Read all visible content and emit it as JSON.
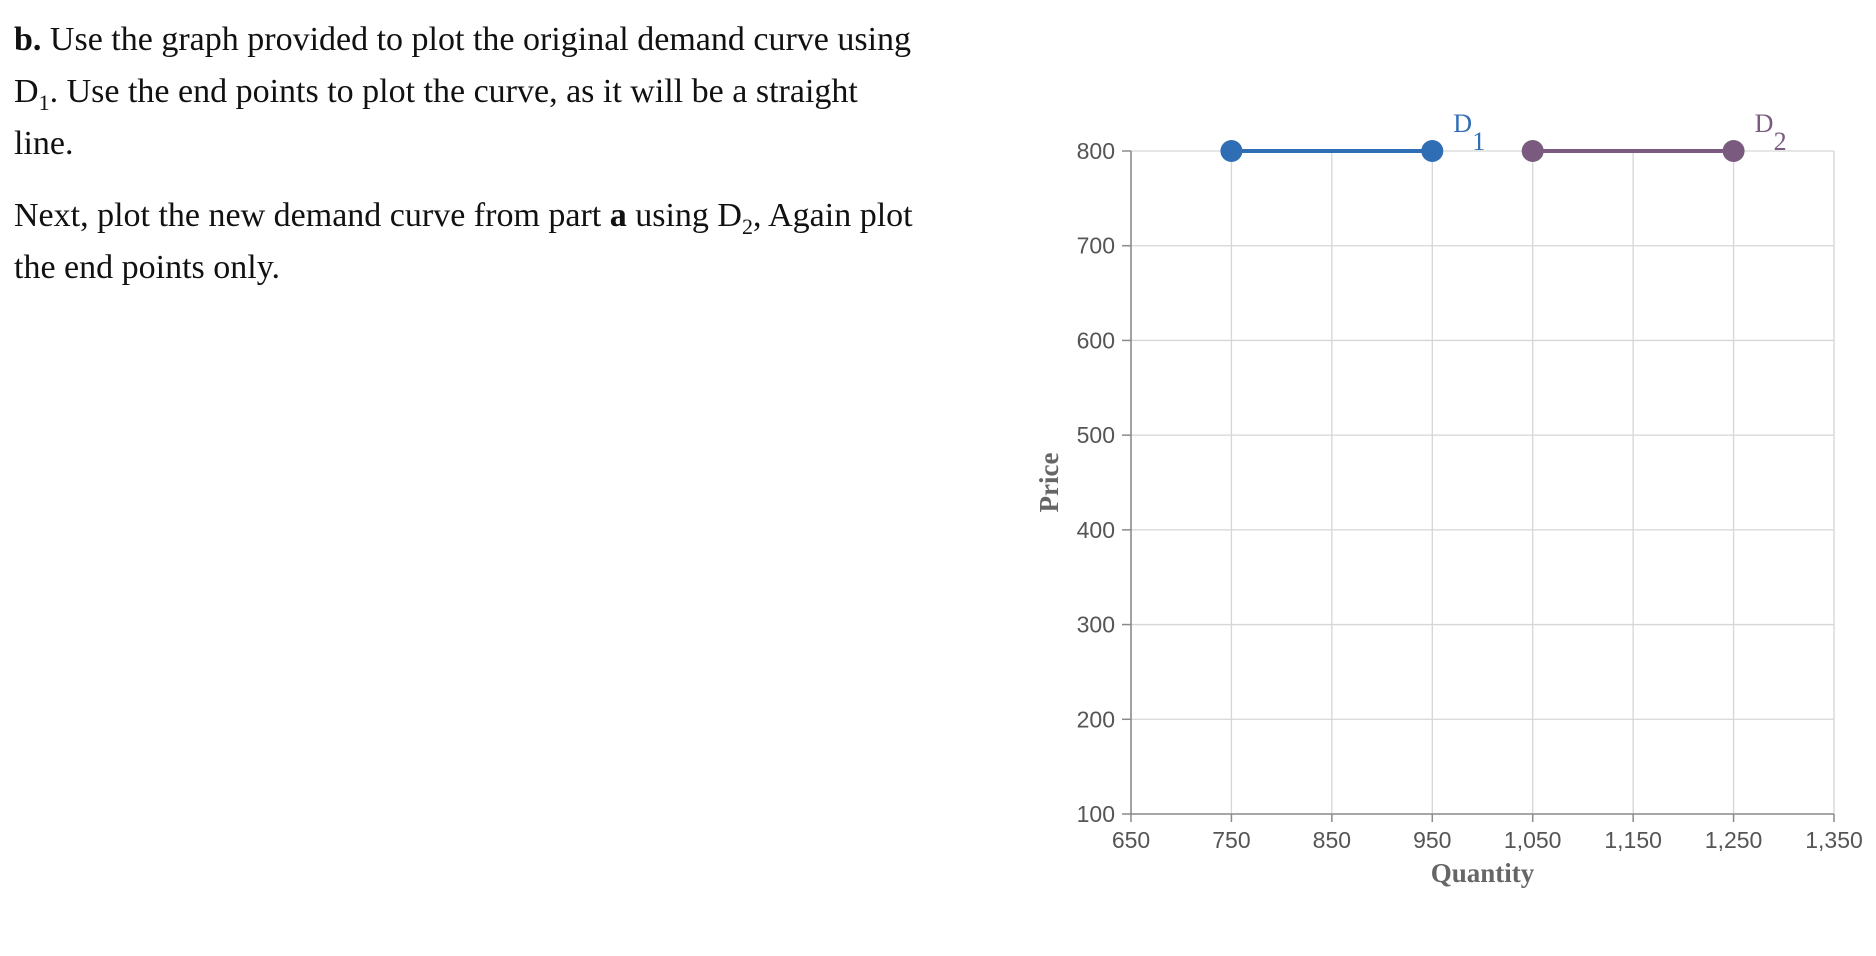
{
  "question": {
    "p1": {
      "lead": "b.",
      "part1": " Use the graph provided to plot the original demand curve using D",
      "sub1": "1",
      "part2": ". Use the end points to plot the curve, as it will be a straight line."
    },
    "p2": {
      "part1": "Next, plot the new demand curve from part ",
      "bold": "a",
      "part2": " using D",
      "sub": "2",
      "part3": ", Again plot the end points only."
    }
  },
  "chart_data": {
    "type": "line",
    "xlabel": "Quantity",
    "ylabel": "Price",
    "xlim": [
      650,
      1350
    ],
    "ylim": [
      100,
      800
    ],
    "x_ticks": [
      650,
      750,
      850,
      950,
      1050,
      1150,
      1250,
      1350
    ],
    "x_tick_labels": [
      "650",
      "750",
      "850",
      "950",
      "1,050",
      "1,150",
      "1,250",
      "1,350"
    ],
    "y_ticks": [
      100,
      200,
      300,
      400,
      500,
      600,
      700,
      800
    ],
    "y_tick_labels": [
      "100",
      "200",
      "300",
      "400",
      "500",
      "600",
      "700",
      "800"
    ],
    "grid": true,
    "series": [
      {
        "name": "D",
        "subscript": "1",
        "color": "#2f6db5",
        "points": [
          [
            750,
            800
          ],
          [
            950,
            800
          ]
        ]
      },
      {
        "name": "D",
        "subscript": "2",
        "color": "#7b5a80",
        "points": [
          [
            1050,
            800
          ],
          [
            1250,
            800
          ]
        ]
      }
    ]
  }
}
